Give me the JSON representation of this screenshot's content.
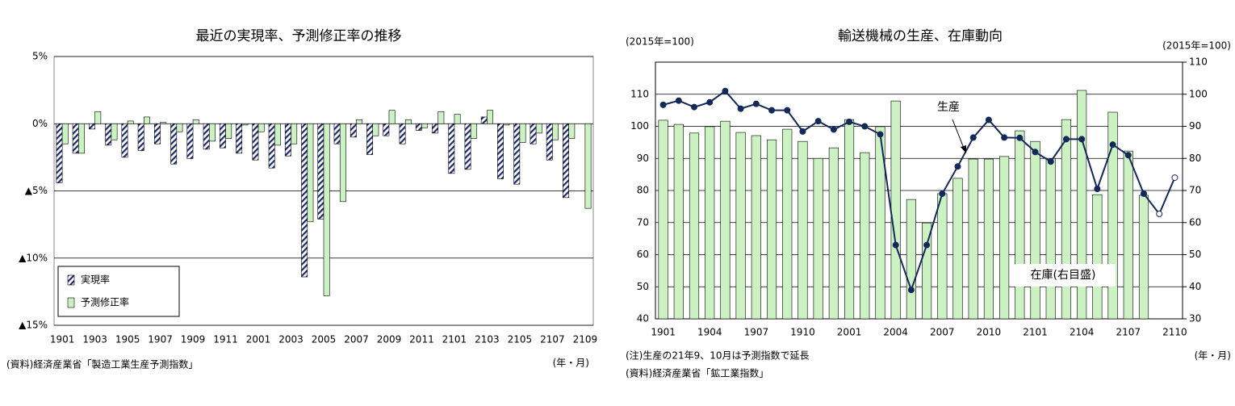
{
  "chart_data": [
    {
      "type": "bar",
      "title": "最近の実現率、予測修正率の推移",
      "categories": [
        "1901",
        null,
        "1903",
        null,
        "1905",
        null,
        "1907",
        null,
        "1909",
        null,
        "1911",
        null,
        "2001",
        null,
        "2003",
        null,
        "2005",
        null,
        "2007",
        null,
        "2009",
        null,
        "2011",
        null,
        "2101",
        null,
        "2103",
        null,
        "2105",
        null,
        "2107",
        null,
        "2109"
      ],
      "series": [
        {
          "name": "実現率",
          "color": "#1f2a6e",
          "pattern": "hatch",
          "values": [
            -4.4,
            -2.2,
            -0.4,
            -1.6,
            -2.5,
            -2.0,
            -1.5,
            -3.0,
            -2.6,
            -1.9,
            -1.8,
            -2.2,
            -2.7,
            -3.3,
            -2.4,
            -11.4,
            -7.1,
            -1.5,
            -1.0,
            -2.3,
            -0.9,
            -1.5,
            -0.5,
            -0.7,
            -3.7,
            -3.4,
            0.5,
            -4.1,
            -4.5,
            -1.5,
            -2.7,
            -5.5,
            null
          ]
        },
        {
          "name": "予測修正率",
          "color": "#ccf2c4",
          "values": [
            -1.5,
            -2.2,
            0.9,
            -1.2,
            0.2,
            0.5,
            0.1,
            -0.6,
            0.3,
            -1.3,
            -1.1,
            -0.1,
            -0.6,
            -1.6,
            -1.5,
            -7.3,
            -12.8,
            -5.8,
            0.3,
            -0.9,
            1.0,
            0.3,
            -0.3,
            0.9,
            0.7,
            -1.1,
            1.0,
            -0.1,
            -1.4,
            -0.7,
            -1.2,
            -1.1,
            -6.3
          ]
        }
      ],
      "ylim": [
        -15,
        5
      ],
      "yticks": [
        {
          "value": 5,
          "label": "5%"
        },
        {
          "value": 0,
          "label": "0%"
        },
        {
          "value": -5,
          "label": "▲5%"
        },
        {
          "value": -10,
          "label": "▲10%"
        },
        {
          "value": -15,
          "label": "▲15%"
        }
      ],
      "grid": true,
      "legend": "lower left",
      "x_unit": "(年・月)",
      "notes": [
        "(資料)経済産業省「製造工業生産予測指数」"
      ]
    },
    {
      "type": "combo",
      "title": "輸送機械の生産、在庫動向",
      "categories": [
        "1901",
        null,
        null,
        "1904",
        null,
        null,
        "1907",
        null,
        null,
        "1910",
        null,
        null,
        "2001",
        null,
        null,
        "2004",
        null,
        null,
        "2007",
        null,
        null,
        "2010",
        null,
        null,
        "2101",
        null,
        null,
        "2104",
        null,
        null,
        "2107",
        null,
        null,
        "2110"
      ],
      "series": [
        {
          "name": "在庫(右目盛)",
          "type": "bar",
          "axis": "y2",
          "color": "#ccf2c4",
          "values": [
            91.9,
            90.6,
            87.9,
            89.9,
            91.6,
            88.1,
            87.1,
            85.8,
            89.1,
            85.3,
            80,
            83.3,
            92.1,
            81.8,
            89.9,
            97.9,
            67.2,
            59.9,
            69,
            73.8,
            79.8,
            79.8,
            80.6,
            88.6,
            85.3,
            80,
            92.1,
            101.2,
            68.7,
            94.4,
            82.3,
            68.5,
            null,
            null
          ]
        },
        {
          "name": "生産",
          "type": "line",
          "axis": "y",
          "color": "#14285a",
          "hollow_points": [
            32,
            33
          ],
          "values": [
            106.7,
            108,
            106,
            107.5,
            111,
            105.5,
            107,
            105,
            105,
            98.4,
            101.6,
            99,
            101.4,
            100,
            97.5,
            63,
            49,
            63,
            79,
            87.5,
            96.5,
            102,
            96.5,
            96.4,
            92,
            89,
            96,
            96,
            80.5,
            94.3,
            91,
            79,
            72.7,
            84
          ]
        }
      ],
      "ylim": [
        40,
        120
      ],
      "yticks": [
        40,
        50,
        60,
        70,
        80,
        90,
        100,
        110
      ],
      "y2lim": [
        30,
        110
      ],
      "y2ticks": [
        30,
        40,
        50,
        60,
        70,
        80,
        90,
        100,
        110
      ],
      "grid": true,
      "ylabel": "(2015年=100)",
      "y2label": "(2015年=100)",
      "x_unit": "(年・月)",
      "notes": [
        "(注)生産の21年9、10月は予測指数で延長",
        "(資料)経済産業省「鉱工業指数」"
      ]
    }
  ]
}
